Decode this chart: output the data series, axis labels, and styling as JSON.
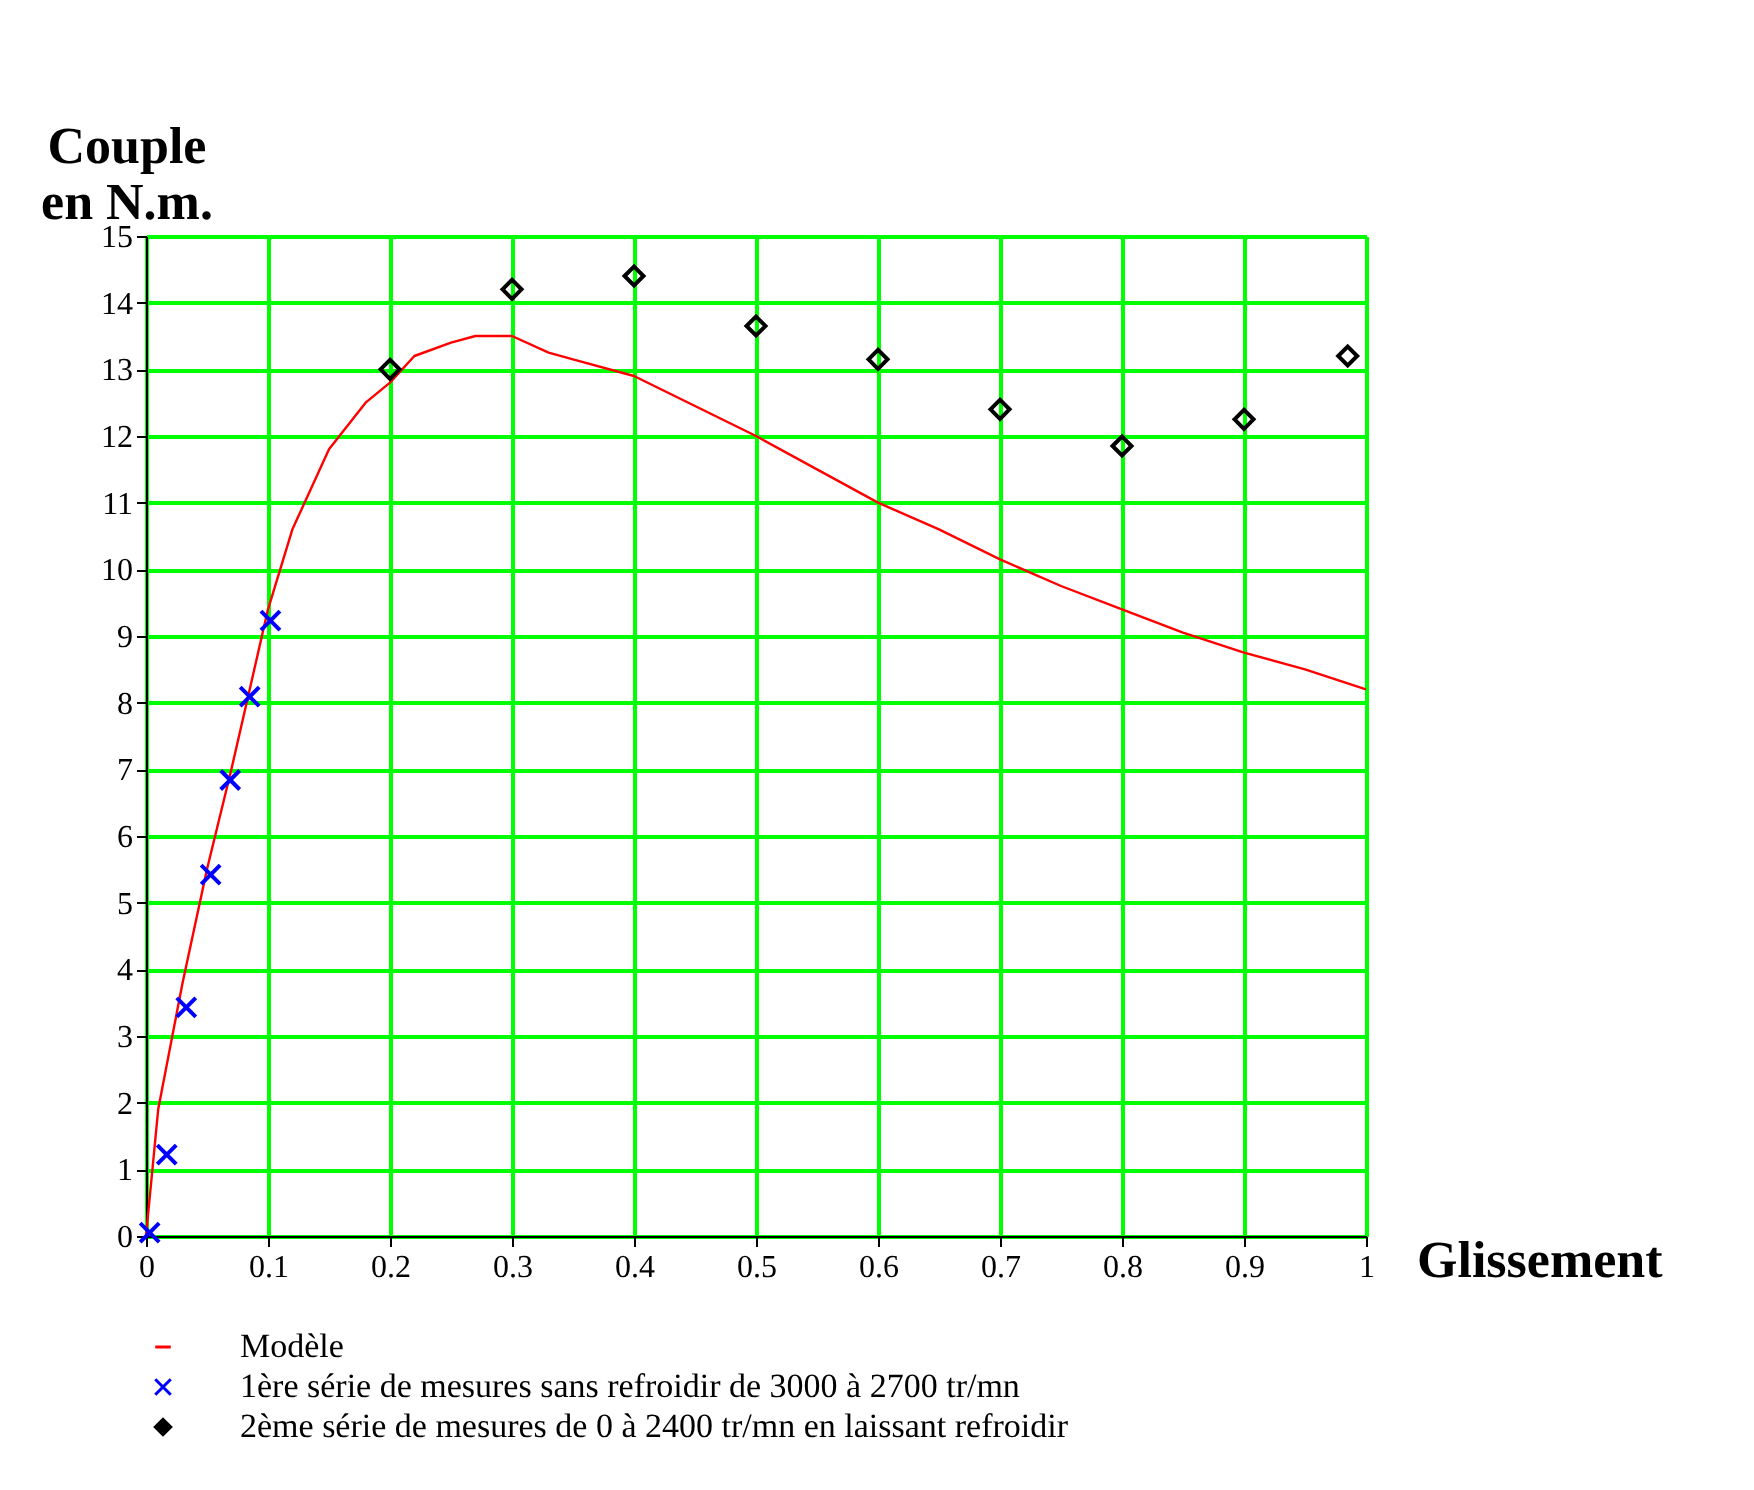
{
  "chart_data": {
    "type": "line",
    "ylabel": "Couple\nen N.m.",
    "xlabel": "Glissement",
    "xlim": [
      0,
      1
    ],
    "xticks": [
      0,
      0.1,
      0.2,
      0.3,
      0.4,
      0.5,
      0.6,
      0.7,
      0.8,
      0.9,
      1
    ],
    "ylim": [
      0,
      15
    ],
    "yticks": [
      0,
      1,
      2,
      3,
      4,
      5,
      6,
      7,
      8,
      9,
      10,
      11,
      12,
      13,
      14,
      15
    ],
    "grid": true,
    "legend": "bottom",
    "series": [
      {
        "name": "Modèle",
        "color": "#ff0000",
        "marker": "none",
        "line_style": "solid",
        "x": [
          0,
          0.01,
          0.03,
          0.05,
          0.07,
          0.1,
          0.12,
          0.15,
          0.18,
          0.2,
          0.22,
          0.25,
          0.27,
          0.3,
          0.33,
          0.35,
          0.4,
          0.45,
          0.5,
          0.55,
          0.6,
          0.65,
          0.7,
          0.75,
          0.8,
          0.85,
          0.9,
          0.95,
          1.0
        ],
        "values": [
          0,
          1.9,
          3.8,
          5.5,
          7.0,
          9.4,
          10.6,
          11.8,
          12.5,
          12.8,
          13.2,
          13.4,
          13.5,
          13.5,
          13.25,
          13.15,
          12.9,
          12.45,
          12.0,
          11.5,
          11.0,
          10.6,
          10.15,
          9.75,
          9.4,
          9.05,
          8.75,
          8.5,
          8.2
        ]
      },
      {
        "name": "1ère série de mesures sans refroidir de 3000 à 2700 tr/mn",
        "type": "scatter",
        "color": "#0000ff",
        "marker": "cross",
        "x": [
          0.003,
          0.017,
          0.033,
          0.053,
          0.069,
          0.085,
          0.102
        ],
        "values": [
          0.05,
          1.22,
          3.43,
          5.42,
          6.84,
          8.09,
          9.23
        ]
      },
      {
        "name": "2ème série de mesures de 0 à 2400 tr/mn en laissant refroidir",
        "type": "scatter",
        "color": "#000000",
        "marker": "diamond",
        "x": [
          0.2,
          0.3,
          0.4,
          0.5,
          0.6,
          0.7,
          0.8,
          0.9,
          0.985
        ],
        "values": [
          13.0,
          14.2,
          14.4,
          13.65,
          13.15,
          12.4,
          11.85,
          12.25,
          13.2
        ]
      }
    ]
  }
}
